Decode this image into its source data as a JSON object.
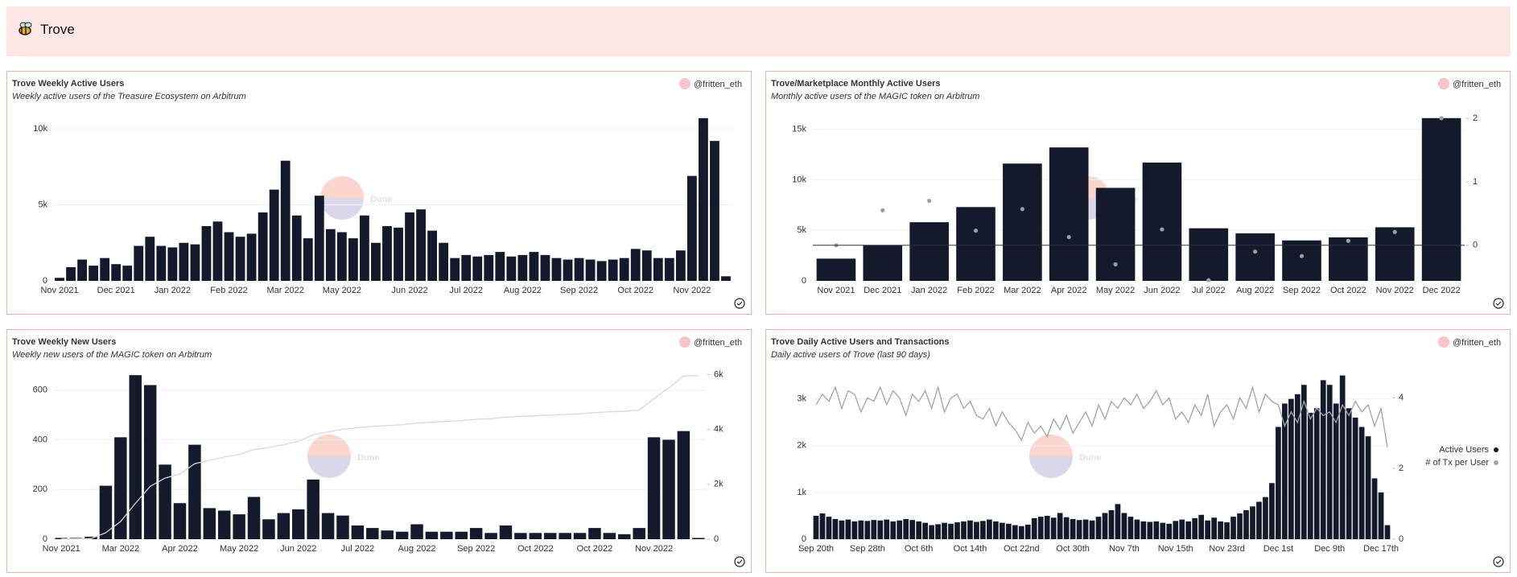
{
  "header": {
    "title": "Trove"
  },
  "author": "@fritten_eth",
  "watermark": "Dune",
  "chart_data": [
    {
      "type": "bar",
      "title": "Trove Weekly Active Users",
      "subtitle": "Weekly active users of the Treasure Ecosystem on Arbitrum",
      "categories": [
        "Nov 2021",
        null,
        null,
        null,
        null,
        "Dec 2021",
        null,
        null,
        null,
        null,
        "Jan 2022",
        null,
        null,
        null,
        null,
        "Feb 2022",
        null,
        null,
        null,
        null,
        "Mar 2022",
        null,
        null,
        null,
        null,
        "May 2022",
        null,
        null,
        null,
        null,
        null,
        "Jun 2022",
        null,
        null,
        null,
        null,
        "Jul 2022",
        null,
        null,
        null,
        null,
        "Aug 2022",
        null,
        null,
        null,
        null,
        "Sep 2022",
        null,
        null,
        null,
        null,
        "Oct 2022",
        null,
        null,
        null,
        null,
        "Nov 2022",
        null,
        null,
        null
      ],
      "values": [
        200,
        900,
        1400,
        1000,
        1500,
        1100,
        1000,
        2300,
        2900,
        2300,
        2200,
        2500,
        2400,
        3600,
        3900,
        3200,
        2900,
        3100,
        4500,
        6000,
        7900,
        4300,
        2800,
        5600,
        3400,
        3200,
        2800,
        4300,
        2500,
        3600,
        3500,
        4500,
        4700,
        3300,
        2500,
        1500,
        1700,
        1600,
        1700,
        1900,
        1600,
        1700,
        1900,
        1700,
        1500,
        1400,
        1500,
        1400,
        1300,
        1400,
        1500,
        2100,
        2000,
        1500,
        1500,
        2000,
        6900,
        10700,
        9200,
        300
      ],
      "color": "#141a2b",
      "ylim": [
        0,
        10900
      ],
      "yticks": [
        0,
        {
          "value": 5000,
          "label": "5k"
        },
        {
          "value": 10000,
          "label": "10k"
        }
      ],
      "grid": true
    },
    {
      "type": "bar",
      "title": "Trove/Marketplace Monthly Active Users",
      "subtitle": "Monthly active users of the MAGIC token on Arbitrum",
      "categories": [
        "Nov 2021",
        "Dec 2021",
        "Jan 2022",
        "Feb 2022",
        "Mar 2022",
        "Apr 2022",
        "May 2022",
        "Jun 2022",
        "Jul 2022",
        "Aug 2022",
        "Sep 2022",
        "Oct 2022",
        "Nov 2022",
        "Dec 2022"
      ],
      "series": [
        {
          "type": "bar",
          "color": "#141a2b",
          "values": [
            2200,
            3500,
            5800,
            7300,
            11600,
            13200,
            9200,
            11700,
            5200,
            4700,
            4000,
            4300,
            5300,
            16100
          ]
        },
        {
          "type": "scatter",
          "color": "#9a9ea8",
          "axis": "y2",
          "values": [
            0.0,
            0.55,
            0.7,
            0.23,
            0.57,
            0.13,
            -0.3,
            0.25,
            -0.55,
            -0.1,
            -0.17,
            0.07,
            0.21,
            2.0
          ]
        }
      ],
      "ylim": [
        0,
        16400
      ],
      "yticks": [
        0,
        {
          "value": 5000,
          "label": "5k"
        },
        {
          "value": 10000,
          "label": "10k"
        },
        {
          "value": 15000,
          "label": "15k"
        }
      ],
      "y2lim": [
        -0.56,
        2.05
      ],
      "y2ticks": [
        0,
        1,
        2
      ],
      "grid": true
    },
    {
      "type": "bar",
      "title": "Trove Weekly New Users",
      "subtitle": "Weekly new users of the MAGIC token on Arbitrum",
      "categories": [
        "Nov 2021",
        null,
        null,
        null,
        "Mar 2022",
        null,
        null,
        null,
        "Apr 2022",
        null,
        null,
        null,
        "May 2022",
        null,
        null,
        null,
        "Jun 2022",
        null,
        null,
        null,
        "Jul 2022",
        null,
        null,
        null,
        "Aug 2022",
        null,
        null,
        null,
        "Sep 2022",
        null,
        null,
        null,
        "Oct 2022",
        null,
        null,
        null,
        "Oct 2022",
        null,
        null,
        null,
        "Nov 2022",
        null,
        null,
        null
      ],
      "series": [
        {
          "type": "bar",
          "color": "#141a2b",
          "values": [
            5,
            5,
            10,
            215,
            410,
            660,
            620,
            300,
            145,
            380,
            125,
            115,
            100,
            170,
            80,
            105,
            120,
            240,
            105,
            95,
            55,
            45,
            35,
            30,
            60,
            30,
            30,
            30,
            45,
            25,
            55,
            25,
            25,
            25,
            25,
            25,
            45,
            25,
            20,
            45,
            410,
            400,
            435,
            5
          ]
        },
        {
          "type": "line",
          "color": "#d8d8dc",
          "axis": "y2",
          "values": [
            5,
            10,
            20,
            235,
            645,
            1305,
            1925,
            2225,
            2370,
            2750,
            2875,
            2990,
            3090,
            3260,
            3340,
            3445,
            3565,
            3805,
            3910,
            4005,
            4060,
            4105,
            4140,
            4170,
            4230,
            4260,
            4290,
            4320,
            4365,
            4390,
            4445,
            4470,
            4495,
            4520,
            4545,
            4570,
            4615,
            4640,
            4660,
            4705,
            5115,
            5515,
            5950,
            5955
          ]
        }
      ],
      "ylim": [
        0,
        667
      ],
      "yticks": [
        0,
        200,
        400,
        600
      ],
      "y2lim": [
        0,
        6040
      ],
      "y2ticks": [
        0,
        {
          "value": 2000,
          "label": "2k"
        },
        {
          "value": 4000,
          "label": "4k"
        },
        {
          "value": 6000,
          "label": "6k"
        }
      ],
      "grid": true
    },
    {
      "type": "bar",
      "title": "Trove Daily Active Users and Transactions",
      "subtitle": "Daily active users of Trove (last 90 days)",
      "categories": [
        "Sep 20th",
        null,
        null,
        null,
        null,
        null,
        null,
        null,
        "Sep 28th",
        null,
        null,
        null,
        null,
        null,
        null,
        null,
        "Oct 6th",
        null,
        null,
        null,
        null,
        null,
        null,
        null,
        "Oct 14th",
        null,
        null,
        null,
        null,
        null,
        null,
        null,
        "Oct 22nd",
        null,
        null,
        null,
        null,
        null,
        null,
        null,
        "Oct 30th",
        null,
        null,
        null,
        null,
        null,
        null,
        null,
        "Nov 7th",
        null,
        null,
        null,
        null,
        null,
        null,
        null,
        "Nov 15th",
        null,
        null,
        null,
        null,
        null,
        null,
        null,
        "Nov 23rd",
        null,
        null,
        null,
        null,
        null,
        null,
        null,
        "Dec 1st",
        null,
        null,
        null,
        null,
        null,
        null,
        null,
        "Dec 9th",
        null,
        null,
        null,
        null,
        null,
        null,
        null,
        "Dec 17th",
        null
      ],
      "series": [
        {
          "name": "Active Users",
          "type": "bar",
          "color": "#141a2b",
          "values": [
            500,
            550,
            480,
            430,
            400,
            420,
            380,
            400,
            390,
            410,
            400,
            420,
            380,
            400,
            430,
            410,
            380,
            350,
            300,
            320,
            350,
            330,
            360,
            380,
            400,
            370,
            390,
            420,
            380,
            350,
            330,
            300,
            280,
            310,
            450,
            480,
            500,
            460,
            560,
            470,
            430,
            410,
            420,
            400,
            480,
            560,
            620,
            750,
            560,
            480,
            420,
            380,
            370,
            380,
            350,
            330,
            390,
            420,
            380,
            450,
            520,
            400,
            460,
            380,
            360,
            480,
            550,
            620,
            700,
            800,
            900,
            1200,
            2400,
            2900,
            3000,
            3100,
            3300,
            2700,
            2800,
            3400,
            3300,
            2900,
            3500,
            2800,
            2600,
            2400,
            2200,
            1300,
            1000,
            300
          ]
        },
        {
          "name": "# of Tx per User",
          "type": "line",
          "color": "#a3a3a8",
          "axis": "y2",
          "values": [
            3.8,
            4.1,
            3.9,
            4.3,
            3.7,
            4.2,
            4.1,
            3.6,
            4.0,
            3.9,
            4.3,
            3.8,
            4.2,
            4.0,
            3.5,
            4.1,
            3.9,
            4.2,
            3.7,
            4.3,
            3.6,
            4.0,
            4.1,
            3.7,
            3.9,
            3.5,
            3.4,
            3.7,
            3.2,
            3.6,
            3.3,
            3.1,
            2.8,
            3.3,
            3.0,
            3.2,
            2.9,
            3.4,
            3.1,
            3.5,
            3.0,
            3.3,
            3.6,
            3.2,
            3.8,
            3.4,
            3.9,
            3.7,
            4.0,
            3.8,
            4.1,
            3.7,
            3.9,
            4.2,
            3.8,
            4.0,
            3.4,
            3.6,
            3.3,
            3.8,
            3.5,
            4.1,
            3.2,
            3.6,
            3.8,
            3.4,
            4.0,
            3.7,
            4.3,
            3.6,
            4.1,
            3.9,
            3.8,
            3.2,
            3.6,
            3.3,
            3.9,
            3.4,
            3.7,
            3.5,
            3.6,
            3.3,
            3.8,
            3.5,
            3.9,
            3.6,
            3.8,
            3.2,
            3.7,
            2.6
          ]
        }
      ],
      "ylim": [
        0,
        3545
      ],
      "yticks": [
        0,
        {
          "value": 1000,
          "label": "1k"
        },
        {
          "value": 2000,
          "label": "2k"
        },
        {
          "value": 3000,
          "label": "3k"
        }
      ],
      "y2lim": [
        0,
        4.69
      ],
      "y2ticks": [
        0,
        2,
        4
      ],
      "grid": true,
      "legend": "right"
    }
  ]
}
